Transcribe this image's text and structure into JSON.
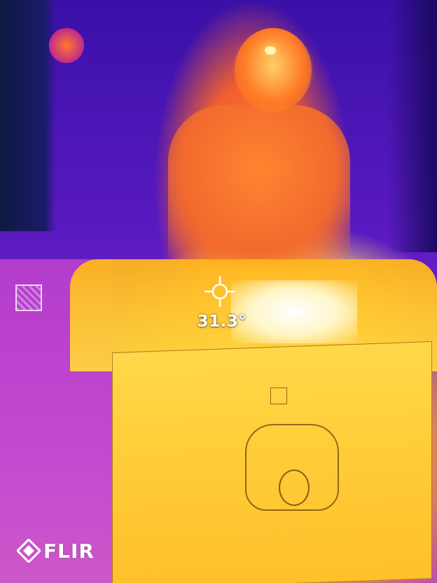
{
  "overlay": {
    "spot_temperature": "31.3°",
    "spot_icon": "crosshair-icon"
  },
  "branding": {
    "logo_text": "FLIR",
    "logo_icon": "flir-diamond-icon"
  },
  "colors": {
    "cold": "#3a10a8",
    "mid": "#c23ec8",
    "warm": "#f26a2e",
    "hot": "#ffd23a",
    "hottest": "#ffffff"
  }
}
